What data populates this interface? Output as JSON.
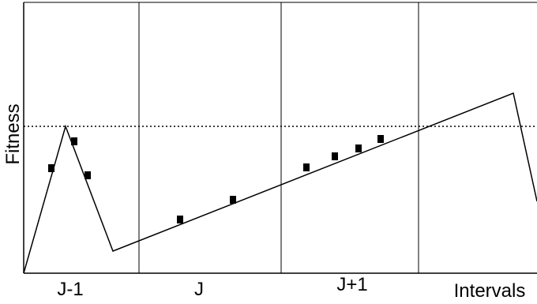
{
  "diagram": {
    "y_axis_label": "Fitness",
    "x_axis_label": "Intervals",
    "interval_labels": [
      "J-1",
      "J",
      "J+1"
    ],
    "colors": {
      "line": "#000000",
      "marker": "#000000",
      "background": "#ffffff"
    }
  }
}
